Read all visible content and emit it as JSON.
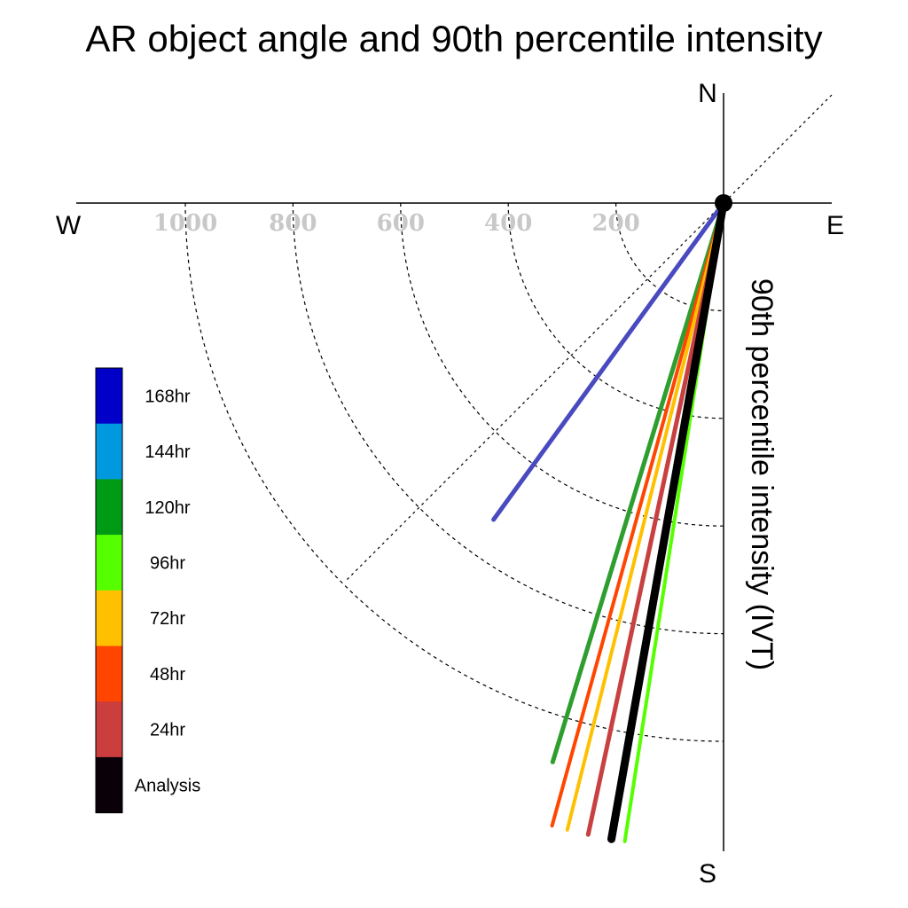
{
  "chart_data": {
    "type": "polar-quadrant-lines",
    "title": "AR object angle and 90th percentile intensity",
    "radial_axis_label": "90th percentile intensity (IVT)",
    "compass": {
      "north": "N",
      "south": "S",
      "east": "E",
      "west": "W"
    },
    "rings": [
      200,
      400,
      600,
      800,
      1000
    ],
    "ring_labels": [
      "200",
      "400",
      "600",
      "800",
      "1000"
    ],
    "r_max": 1200,
    "series": [
      {
        "name": "168hr",
        "color": "#4a4ac0",
        "angle_deg_from_south_toward_west": 36.0,
        "intensity": 727,
        "width": 5
      },
      {
        "name": "120hr",
        "color": "#2e9e2e",
        "angle_deg_from_south_toward_west": 17.0,
        "intensity": 1086,
        "width": 5
      },
      {
        "name": "48hr",
        "color": "#ff4500",
        "angle_deg_from_south_toward_west": 15.4,
        "intensity": 1200,
        "width": 4
      },
      {
        "name": "72hr",
        "color": "#ffc000",
        "angle_deg_from_south_toward_west": 14.0,
        "intensity": 1200,
        "width": 4
      },
      {
        "name": "24hr",
        "color": "#c84040",
        "angle_deg_from_south_toward_west": 12.1,
        "intensity": 1200,
        "width": 5
      },
      {
        "name": "96hr",
        "color": "#55ff00",
        "angle_deg_from_south_toward_west": 8.8,
        "intensity": 1200,
        "width": 4
      },
      {
        "name": "Analysis",
        "color": "#000000",
        "angle_deg_from_south_toward_west": 10.0,
        "intensity": 1200,
        "width": 9
      }
    ],
    "legend": [
      {
        "label": "168hr",
        "color": "#0000c8"
      },
      {
        "label": "144hr",
        "color": "#0099e0"
      },
      {
        "label": "120hr",
        "color": "#009b14"
      },
      {
        "label": "96hr",
        "color": "#55ff00"
      },
      {
        "label": "72hr",
        "color": "#ffc000"
      },
      {
        "label": "48hr",
        "color": "#ff4500"
      },
      {
        "label": "24hr",
        "color": "#cc3d3d"
      },
      {
        "label": "Analysis",
        "color": "#0a0008"
      }
    ]
  }
}
